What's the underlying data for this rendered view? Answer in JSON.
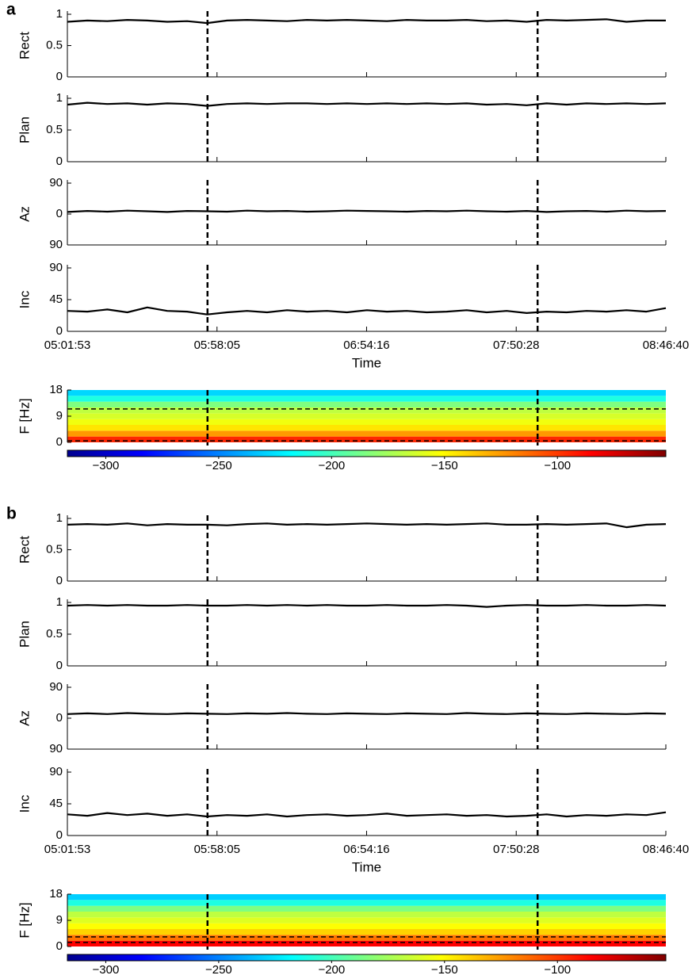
{
  "chart_data": [
    {
      "type": "panel",
      "label": "a",
      "xlabel": "Time",
      "xlim": [
        "05:01:53",
        "08:46:40"
      ],
      "xticks": [
        "05:01:53",
        "05:58:05",
        "06:54:16",
        "07:50:28",
        "08:46:40"
      ],
      "markers": [
        "05:54:31",
        "07:58:30"
      ],
      "x": [
        "05:01:53",
        "05:09:23",
        "05:16:53",
        "05:24:23",
        "05:31:53",
        "05:39:23",
        "05:46:53",
        "05:54:23",
        "06:01:53",
        "06:09:23",
        "06:16:53",
        "06:24:23",
        "06:31:53",
        "06:39:23",
        "06:46:53",
        "06:54:23",
        "07:01:53",
        "07:09:23",
        "07:16:53",
        "07:24:23",
        "07:31:53",
        "07:39:23",
        "07:46:53",
        "07:54:23",
        "08:01:53",
        "08:09:23",
        "08:16:53",
        "08:24:23",
        "08:31:53",
        "08:39:23",
        "08:46:40"
      ],
      "subplots": [
        {
          "type": "line",
          "ylabel": "Rect",
          "ylim": [
            0,
            1
          ],
          "yticks": [
            0,
            0.5,
            1
          ],
          "color": "#000000",
          "values": [
            0.88,
            0.9,
            0.89,
            0.91,
            0.9,
            0.88,
            0.89,
            0.86,
            0.9,
            0.91,
            0.9,
            0.89,
            0.91,
            0.9,
            0.91,
            0.9,
            0.89,
            0.91,
            0.9,
            0.9,
            0.91,
            0.89,
            0.9,
            0.88,
            0.91,
            0.9,
            0.91,
            0.92,
            0.88,
            0.9,
            0.9
          ]
        },
        {
          "type": "line",
          "ylabel": "Plan",
          "ylim": [
            0,
            1
          ],
          "yticks": [
            0,
            0.5,
            1
          ],
          "color": "#000000",
          "values": [
            0.9,
            0.93,
            0.91,
            0.92,
            0.9,
            0.92,
            0.91,
            0.88,
            0.91,
            0.92,
            0.91,
            0.92,
            0.92,
            0.91,
            0.92,
            0.91,
            0.92,
            0.91,
            0.92,
            0.91,
            0.92,
            0.9,
            0.91,
            0.89,
            0.92,
            0.9,
            0.92,
            0.91,
            0.92,
            0.91,
            0.92
          ]
        },
        {
          "type": "line",
          "ylabel": "Az",
          "ylim": [
            -90,
            90
          ],
          "yticks": [
            {
              "value": -90,
              "label": "90"
            },
            0,
            90
          ],
          "color": "#000000",
          "values": [
            6,
            9,
            7,
            10,
            8,
            6,
            9,
            8,
            7,
            10,
            8,
            9,
            7,
            8,
            10,
            9,
            8,
            7,
            9,
            8,
            10,
            8,
            7,
            9,
            6,
            8,
            9,
            7,
            10,
            8,
            9
          ]
        },
        {
          "type": "line",
          "ylabel": "Inc",
          "ylim": [
            0,
            90
          ],
          "yticks": [
            0,
            45,
            90
          ],
          "color": "#000000",
          "values": [
            29,
            28,
            31,
            27,
            34,
            29,
            28,
            24,
            27,
            29,
            27,
            30,
            28,
            29,
            27,
            30,
            28,
            29,
            27,
            28,
            30,
            27,
            29,
            26,
            28,
            27,
            29,
            28,
            30,
            28,
            33
          ]
        }
      ],
      "spectrogram": {
        "type": "heatmap",
        "ylabel": "F [Hz]",
        "ylim": [
          0,
          18
        ],
        "yticks": [
          0,
          9,
          18
        ],
        "bins": [
          0,
          2,
          4,
          6,
          8,
          10,
          12,
          14,
          16,
          18
        ],
        "values": [
          -95,
          -125,
          -145,
          -155,
          -162,
          -168,
          -185,
          -210,
          -228
        ],
        "hlines": [
          11.5,
          0.5
        ]
      },
      "colorbar": {
        "type": "colorbar",
        "xlim": [
          -317,
          -52
        ],
        "xticks": [
          {
            "value": -300,
            "label": "−300"
          },
          {
            "value": -250,
            "label": "−250"
          },
          {
            "value": -200,
            "label": "−200"
          },
          {
            "value": -150,
            "label": "−150"
          },
          {
            "value": -100,
            "label": "−100"
          }
        ]
      }
    },
    {
      "type": "panel",
      "label": "b",
      "xlabel": "Time",
      "xlim": [
        "05:01:53",
        "08:46:40"
      ],
      "xticks": [
        "05:01:53",
        "05:58:05",
        "06:54:16",
        "07:50:28",
        "08:46:40"
      ],
      "markers": [
        "05:54:31",
        "07:58:30"
      ],
      "x": [
        "05:01:53",
        "05:09:23",
        "05:16:53",
        "05:24:23",
        "05:31:53",
        "05:39:23",
        "05:46:53",
        "05:54:23",
        "06:01:53",
        "06:09:23",
        "06:16:53",
        "06:24:23",
        "06:31:53",
        "06:39:23",
        "06:46:53",
        "06:54:23",
        "07:01:53",
        "07:09:23",
        "07:16:53",
        "07:24:23",
        "07:31:53",
        "07:39:23",
        "07:46:53",
        "07:54:23",
        "08:01:53",
        "08:09:23",
        "08:16:53",
        "08:24:23",
        "08:31:53",
        "08:39:23",
        "08:46:40"
      ],
      "subplots": [
        {
          "type": "line",
          "ylabel": "Rect",
          "ylim": [
            0,
            1
          ],
          "yticks": [
            0,
            0.5,
            1
          ],
          "color": "#000000",
          "values": [
            0.9,
            0.91,
            0.9,
            0.92,
            0.89,
            0.91,
            0.9,
            0.9,
            0.89,
            0.91,
            0.92,
            0.9,
            0.91,
            0.9,
            0.91,
            0.92,
            0.91,
            0.9,
            0.91,
            0.9,
            0.91,
            0.92,
            0.9,
            0.9,
            0.91,
            0.9,
            0.91,
            0.92,
            0.86,
            0.9,
            0.91
          ]
        },
        {
          "type": "line",
          "ylabel": "Plan",
          "ylim": [
            0,
            1
          ],
          "yticks": [
            0,
            0.5,
            1
          ],
          "color": "#000000",
          "values": [
            0.95,
            0.96,
            0.95,
            0.96,
            0.95,
            0.95,
            0.96,
            0.95,
            0.95,
            0.96,
            0.95,
            0.96,
            0.95,
            0.96,
            0.95,
            0.95,
            0.96,
            0.95,
            0.95,
            0.96,
            0.95,
            0.93,
            0.95,
            0.96,
            0.95,
            0.95,
            0.96,
            0.95,
            0.95,
            0.96,
            0.95
          ]
        },
        {
          "type": "line",
          "ylabel": "Az",
          "ylim": [
            -90,
            90
          ],
          "yticks": [
            {
              "value": -90,
              "label": "90"
            },
            0,
            90
          ],
          "color": "#000000",
          "values": [
            12,
            14,
            12,
            15,
            13,
            12,
            14,
            13,
            12,
            14,
            13,
            15,
            13,
            12,
            14,
            13,
            12,
            14,
            13,
            12,
            15,
            13,
            12,
            14,
            13,
            12,
            14,
            13,
            12,
            14,
            13
          ]
        },
        {
          "type": "line",
          "ylabel": "Inc",
          "ylim": [
            0,
            90
          ],
          "yticks": [
            0,
            45,
            90
          ],
          "color": "#000000",
          "values": [
            30,
            28,
            32,
            29,
            31,
            28,
            30,
            27,
            29,
            28,
            30,
            27,
            29,
            30,
            28,
            29,
            31,
            28,
            29,
            30,
            28,
            29,
            27,
            28,
            30,
            27,
            29,
            28,
            30,
            29,
            33
          ]
        }
      ],
      "spectrogram": {
        "type": "heatmap",
        "ylabel": "F [Hz]",
        "ylim": [
          0,
          18
        ],
        "yticks": [
          0,
          9,
          18
        ],
        "bins": [
          0,
          2,
          4,
          6,
          8,
          10,
          12,
          14,
          16,
          18
        ],
        "values": [
          -85,
          -115,
          -140,
          -152,
          -160,
          -168,
          -185,
          -210,
          -230
        ],
        "hlines": [
          3.3,
          1.4
        ]
      },
      "colorbar": {
        "type": "colorbar",
        "xlim": [
          -317,
          -52
        ],
        "xticks": [
          {
            "value": -300,
            "label": "−300"
          },
          {
            "value": -250,
            "label": "−250"
          },
          {
            "value": -200,
            "label": "−200"
          },
          {
            "value": -150,
            "label": "−150"
          },
          {
            "value": -100,
            "label": "−100"
          }
        ]
      }
    }
  ]
}
